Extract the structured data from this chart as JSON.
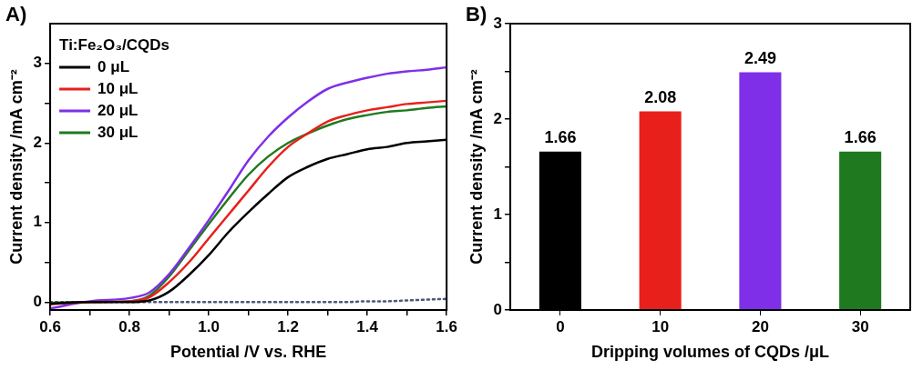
{
  "chart_data": [
    {
      "type": "line",
      "title": "A)",
      "xlabel": "Potential /V vs. RHE",
      "ylabel": "Current density /mA cm⁻²",
      "legend_title": "Ti:Fe₂O₃/CQDs",
      "legend": "top left",
      "grid": false,
      "line_style": "solid",
      "marker": "none",
      "xlim": [
        0.6,
        1.6
      ],
      "xticks": [
        0.6,
        {
          "value": 0.7,
          "label": null
        },
        0.8,
        {
          "value": 0.9,
          "label": null
        },
        {
          "value": 1.0,
          "label": "1.0"
        },
        {
          "value": 1.1,
          "label": null
        },
        1.2,
        {
          "value": 1.3,
          "label": null
        },
        1.4,
        {
          "value": 1.5,
          "label": null
        },
        1.6
      ],
      "ylim": [
        -0.1,
        3.5
      ],
      "yticks": [
        0,
        {
          "value": 0.5,
          "label": null
        },
        1,
        {
          "value": 1.5,
          "label": null
        },
        2,
        {
          "value": 2.5,
          "label": null
        },
        3
      ],
      "x": [
        0.6,
        0.7,
        0.8,
        0.85,
        0.9,
        0.95,
        1.0,
        1.05,
        1.1,
        1.15,
        1.2,
        1.25,
        1.3,
        1.35,
        1.4,
        1.45,
        1.5,
        1.55,
        1.6
      ],
      "series": [
        {
          "name": "0 μL",
          "color": "#000000",
          "values": [
            -0.02,
            0.0,
            0.0,
            0.02,
            0.13,
            0.34,
            0.59,
            0.88,
            1.13,
            1.36,
            1.57,
            1.7,
            1.8,
            1.86,
            1.92,
            1.95,
            2.0,
            2.02,
            2.04
          ]
        },
        {
          "name": "10 μL",
          "color": "#e8201c",
          "values": [
            -0.03,
            0.0,
            0.01,
            0.06,
            0.25,
            0.5,
            0.8,
            1.1,
            1.4,
            1.7,
            1.95,
            2.12,
            2.27,
            2.35,
            2.41,
            2.45,
            2.49,
            2.51,
            2.53
          ]
        },
        {
          "name": "20 μL",
          "color": "#7f2fe8",
          "values": [
            -0.08,
            0.01,
            0.05,
            0.12,
            0.35,
            0.68,
            1.03,
            1.4,
            1.78,
            2.08,
            2.32,
            2.52,
            2.68,
            2.76,
            2.82,
            2.87,
            2.9,
            2.92,
            2.95
          ]
        },
        {
          "name": "30 μL",
          "color": "#1f7a1f",
          "values": [
            -0.01,
            0.0,
            0.01,
            0.08,
            0.32,
            0.65,
            0.98,
            1.3,
            1.6,
            1.83,
            2.0,
            2.12,
            2.22,
            2.3,
            2.35,
            2.39,
            2.41,
            2.44,
            2.46
          ]
        },
        {
          "color": "#4a5a7a",
          "line_style": "dotted",
          "values": [
            0.0,
            0.0,
            0.0,
            0.0,
            0.0,
            0.0,
            0.0,
            0.0,
            0.0,
            0.0,
            0.0,
            0.0,
            0.0,
            0.0,
            0.01,
            0.01,
            0.02,
            0.03,
            0.04
          ]
        }
      ]
    },
    {
      "type": "bar",
      "title": "B)",
      "xlabel": "Dripping volumes of CQDs /μL",
      "ylabel": "Current density /mA cm⁻²",
      "grid": false,
      "legend": false,
      "categories": [
        "0",
        "10",
        "20",
        "30"
      ],
      "values": [
        1.66,
        2.08,
        2.49,
        1.66
      ],
      "colors": [
        "#000000",
        "#e8201c",
        "#7f2fe8",
        "#1f7a1f"
      ],
      "value_labels": [
        "1.66",
        "2.08",
        "2.49",
        "1.66"
      ],
      "ylim": [
        0,
        3
      ],
      "yticks": [
        0,
        {
          "value": 0.5,
          "label": null
        },
        1,
        {
          "value": 1.5,
          "label": null
        },
        2,
        {
          "value": 2.5,
          "label": null
        },
        3
      ]
    }
  ]
}
